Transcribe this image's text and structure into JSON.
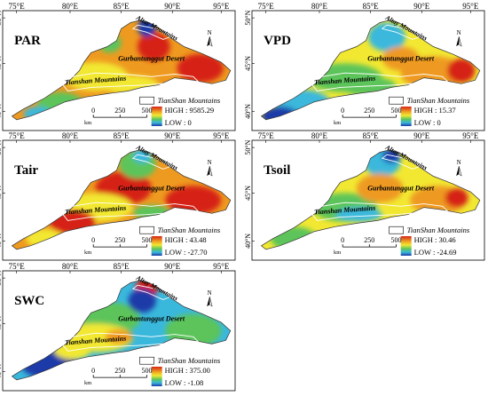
{
  "legend_label": "TianShan Mountains",
  "scale": {
    "unit": "km",
    "ticks": [
      "0",
      "250",
      "500"
    ]
  },
  "north_label": "N",
  "lon_labels": [
    "75°E",
    "80°E",
    "85°E",
    "90°E",
    "95°E"
  ],
  "lat_labels": [
    "50°N",
    "45°N",
    "40°N"
  ],
  "places": {
    "altay": "Altay Mountains",
    "desert": "Gurbantunggut Desert",
    "tianshan": "Tianshan Mountains"
  },
  "colors": {
    "high": "#d62418",
    "orange": "#ee9a20",
    "yellow": "#f2e832",
    "green": "#5cc45a",
    "cyan": "#3ab8dc",
    "low": "#1c3aa8"
  },
  "panels": [
    {
      "id": "par",
      "title": "PAR",
      "high": "HIGH : 9585.29",
      "low": "LOW : 0"
    },
    {
      "id": "vpd",
      "title": "VPD",
      "high": "HIGH : 15.37",
      "low": "LOW : 0"
    },
    {
      "id": "tair",
      "title": "Tair",
      "high": "HIGH : 43.48",
      "low": "LOW : -27.70"
    },
    {
      "id": "tsoil",
      "title": "Tsoil",
      "high": "HIGH : 30.46",
      "low": "LOW : -24.69"
    },
    {
      "id": "swc",
      "title": "SWC",
      "high": "HIGH : 375.00",
      "low": "LOW : -1.08"
    }
  ]
}
